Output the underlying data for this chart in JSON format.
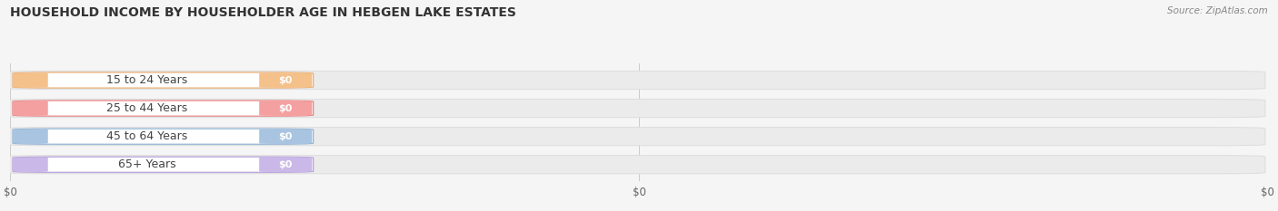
{
  "title": "HOUSEHOLD INCOME BY HOUSEHOLDER AGE IN HEBGEN LAKE ESTATES",
  "source": "Source: ZipAtlas.com",
  "categories": [
    "15 to 24 Years",
    "25 to 44 Years",
    "45 to 64 Years",
    "65+ Years"
  ],
  "values": [
    0,
    0,
    0,
    0
  ],
  "bar_colors": [
    "#f5c18a",
    "#f5a0a0",
    "#a8c4e0",
    "#c9b8e8"
  ],
  "bar_border_colors": [
    "#e8a86a",
    "#e87878",
    "#88aed4",
    "#b098d8"
  ],
  "background_color": "#f5f5f5",
  "track_color": "#ebebeb",
  "track_edge_color": "#dddddd",
  "pill_bg_color": "#ffffff",
  "value_label": "$0",
  "x_tick_labels": [
    "$0",
    "$0",
    "$0"
  ],
  "x_tick_positions": [
    0.0,
    0.5,
    1.0
  ]
}
